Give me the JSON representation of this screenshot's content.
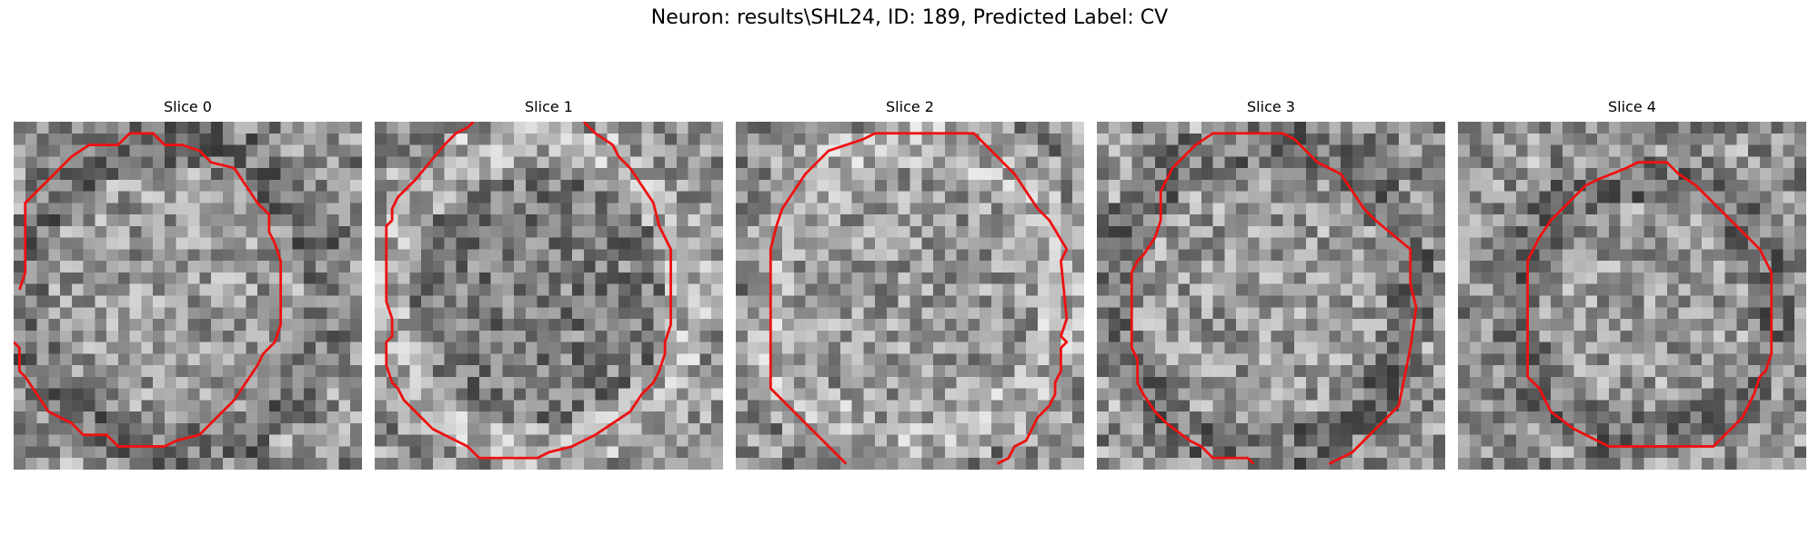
{
  "figure": {
    "title": "Neuron: results\\SHL24, ID: 189, Predicted Label: CV"
  },
  "colors": {
    "background": "#ffffff",
    "contour": "#ee1111",
    "colormap": "gray"
  },
  "panels": [
    {
      "title": "Slice 0",
      "image": "grayscale noisy microscopy crop of round neuron cell body",
      "grid": 30,
      "seed": 11,
      "center_brightness": "medium",
      "ring": "dark"
    },
    {
      "title": "Slice 1",
      "image": "grayscale noisy microscopy crop of round neuron cell body",
      "grid": 30,
      "seed": 23,
      "center_brightness": "dark",
      "ring": "light"
    },
    {
      "title": "Slice 2",
      "image": "grayscale noisy microscopy crop of round neuron cell body",
      "grid": 30,
      "seed": 37,
      "center_brightness": "medium",
      "ring": "light"
    },
    {
      "title": "Slice 3",
      "image": "grayscale noisy microscopy crop of round neuron cell body",
      "grid": 30,
      "seed": 41,
      "center_brightness": "medium",
      "ring": "dark"
    },
    {
      "title": "Slice 4",
      "image": "grayscale noisy microscopy crop of round neuron cell body",
      "grid": 30,
      "seed": 53,
      "center_brightness": "medium",
      "ring": "dark"
    }
  ]
}
